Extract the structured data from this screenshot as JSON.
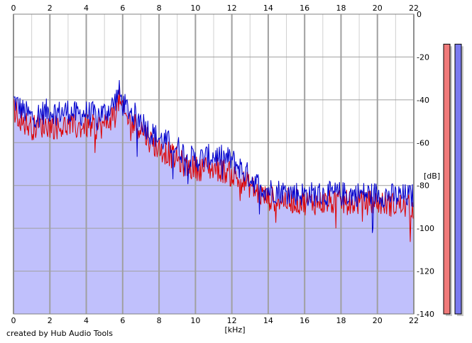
{
  "chart_data": {
    "type": "area",
    "title": "",
    "xlabel": "[kHz]",
    "ylabel": "[dB]",
    "xlim": [
      0,
      22
    ],
    "ylim": [
      -140,
      0
    ],
    "x_ticks": [
      0,
      2,
      4,
      6,
      8,
      10,
      12,
      14,
      16,
      18,
      20,
      22
    ],
    "y_ticks": [
      0,
      -20,
      -40,
      -60,
      -80,
      -100,
      -120,
      -140
    ],
    "grid": true,
    "series": [
      {
        "color": "#0000cc",
        "x": [
          0,
          0.5,
          1,
          1.5,
          2,
          2.5,
          3,
          3.5,
          4,
          4.5,
          5,
          5.5,
          5.8,
          6,
          6.5,
          7,
          7.5,
          8,
          8.5,
          9,
          9.5,
          10,
          10.5,
          11,
          11.5,
          12,
          12.5,
          13,
          13.5,
          14,
          15,
          16,
          17,
          18,
          19,
          20,
          21,
          22
        ],
        "values": [
          -40,
          -45,
          -48,
          -46,
          -45,
          -46,
          -45,
          -47,
          -46,
          -47,
          -46,
          -42,
          -36,
          -42,
          -46,
          -49,
          -55,
          -58,
          -60,
          -62,
          -66,
          -68,
          -67,
          -66,
          -67,
          -68,
          -72,
          -76,
          -80,
          -82,
          -83,
          -84,
          -84,
          -84,
          -84,
          -84,
          -85,
          -85
        ]
      },
      {
        "color": "#dd0000",
        "x": [
          0,
          0.5,
          1,
          1.5,
          2,
          2.5,
          3,
          3.5,
          4,
          4.5,
          5,
          5.5,
          5.8,
          6,
          6.5,
          7,
          7.5,
          8,
          8.5,
          9,
          9.5,
          10,
          10.5,
          11,
          11.5,
          12,
          12.5,
          13,
          13.5,
          14,
          15,
          16,
          17,
          18,
          19,
          20,
          21,
          22
        ],
        "values": [
          -44,
          -50,
          -53,
          -52,
          -52,
          -53,
          -52,
          -53,
          -52,
          -53,
          -52,
          -47,
          -40,
          -46,
          -51,
          -53,
          -59,
          -63,
          -65,
          -68,
          -71,
          -72,
          -72,
          -72,
          -73,
          -75,
          -78,
          -80,
          -84,
          -86,
          -87,
          -88,
          -88,
          -88,
          -88,
          -88,
          -89,
          -90
        ]
      }
    ],
    "right_bars": [
      {
        "color": "#f07a7a",
        "value": -14
      },
      {
        "color": "#7a7af0",
        "value": -14
      }
    ]
  },
  "footer": {
    "credit": "created by Hub Audio Tools"
  },
  "colors": {
    "fill": "#c0c0fc",
    "grid_major": "#a0a0a0",
    "grid_minor": "#d0d0d0"
  }
}
